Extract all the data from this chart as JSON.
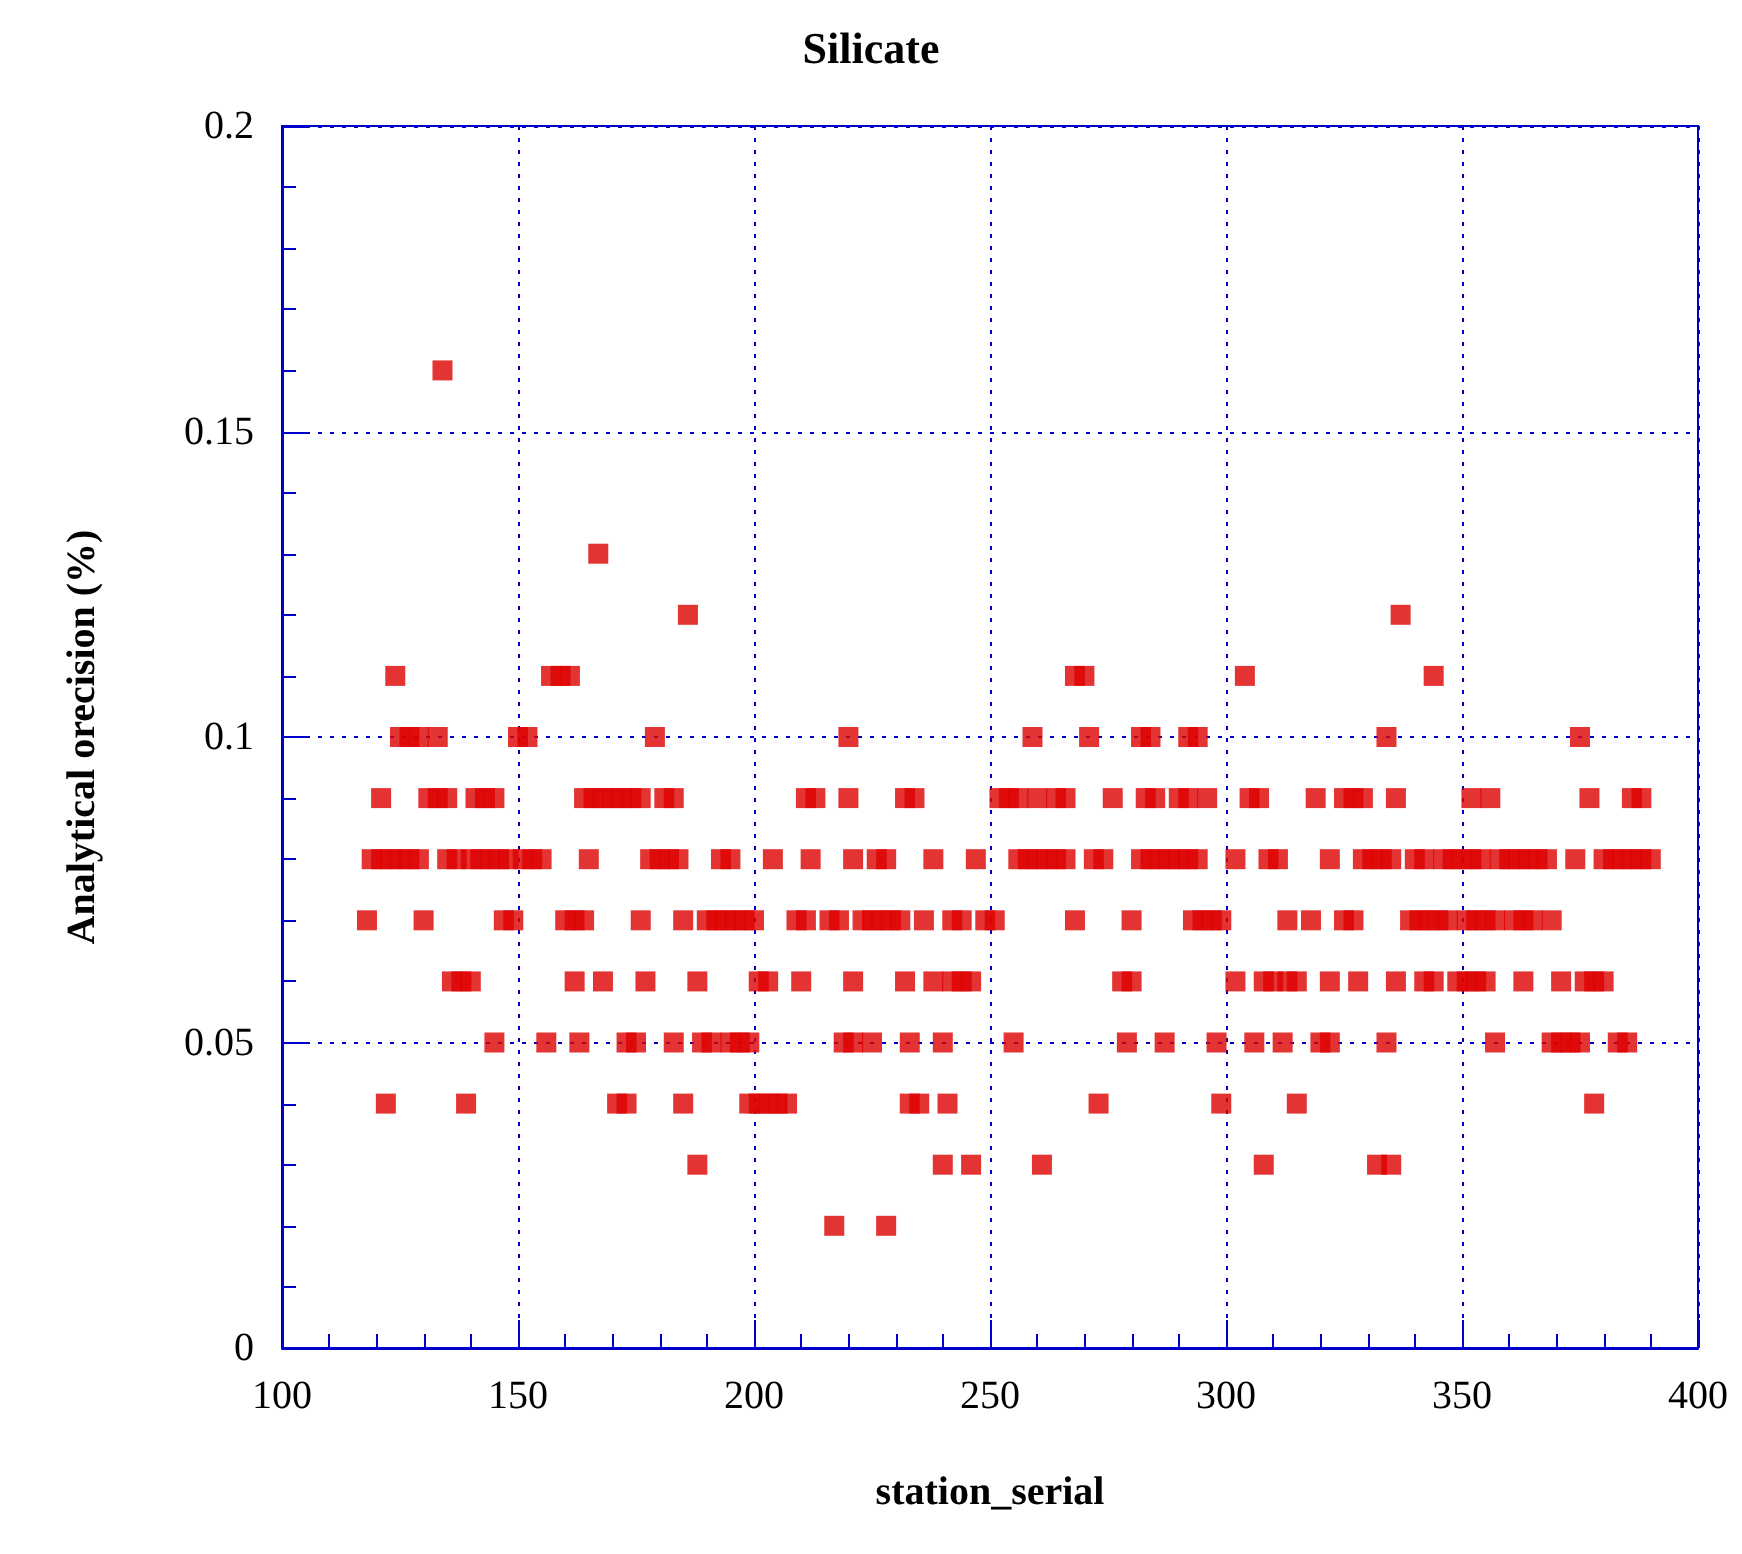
{
  "chart_data": {
    "type": "scatter",
    "title": "Silicate",
    "xlabel": "station_serial",
    "ylabel": "Analytical orecision (%)",
    "xlim": [
      100,
      400
    ],
    "xticks": [
      100,
      150,
      200,
      250,
      300,
      350,
      400
    ],
    "ylim": [
      0,
      0.2
    ],
    "yticks": [
      0,
      0.05,
      0.1,
      0.15,
      0.2
    ],
    "grid": true,
    "marker": "square",
    "series": [
      {
        "color": "#dd0000",
        "x": [
          134,
          167,
          186,
          337,
          124,
          157,
          159,
          161,
          268,
          270,
          304,
          344,
          125,
          127,
          129,
          133,
          150,
          152,
          179,
          220,
          259,
          271,
          282,
          284,
          292,
          294,
          334,
          375,
          121,
          131,
          133,
          135,
          141,
          143,
          145,
          164,
          166,
          168,
          170,
          172,
          174,
          176,
          181,
          183,
          211,
          213,
          220,
          232,
          234,
          252,
          254,
          256,
          260,
          264,
          266,
          276,
          283,
          285,
          290,
          292,
          296,
          305,
          307,
          319,
          325,
          327,
          329,
          336,
          352,
          356,
          377,
          386,
          388,
          119,
          121,
          123,
          125,
          127,
          129,
          135,
          137,
          140,
          142,
          144,
          146,
          148,
          151,
          153,
          155,
          165,
          178,
          180,
          182,
          184,
          193,
          195,
          204,
          212,
          221,
          226,
          228,
          238,
          247,
          256,
          258,
          260,
          262,
          264,
          266,
          272,
          274,
          282,
          284,
          286,
          288,
          290,
          292,
          294,
          302,
          309,
          311,
          322,
          329,
          331,
          333,
          335,
          340,
          342,
          346,
          348,
          350,
          352,
          354,
          358,
          360,
          362,
          364,
          366,
          368,
          374,
          380,
          382,
          384,
          386,
          388,
          390,
          118,
          130,
          147,
          149,
          160,
          162,
          164,
          176,
          185,
          190,
          192,
          194,
          196,
          198,
          200,
          209,
          211,
          216,
          218,
          223,
          225,
          227,
          229,
          231,
          236,
          242,
          244,
          249,
          251,
          268,
          280,
          293,
          295,
          297,
          299,
          313,
          318,
          325,
          327,
          339,
          341,
          343,
          345,
          347,
          351,
          353,
          355,
          357,
          361,
          363,
          365,
          369,
          136,
          138,
          140,
          162,
          168,
          177,
          188,
          201,
          203,
          210,
          221,
          232,
          238,
          242,
          244,
          246,
          278,
          280,
          302,
          308,
          310,
          313,
          315,
          322,
          328,
          336,
          342,
          344,
          349,
          351,
          353,
          355,
          363,
          371,
          376,
          378,
          380,
          145,
          156,
          163,
          173,
          175,
          183,
          189,
          191,
          195,
          197,
          199,
          219,
          221,
          225,
          233,
          240,
          255,
          279,
          287,
          298,
          306,
          312,
          320,
          322,
          334,
          357,
          369,
          371,
          373,
          375,
          383,
          385,
          122,
          139,
          171,
          173,
          185,
          199,
          201,
          203,
          205,
          207,
          233,
          235,
          241,
          273,
          299,
          315,
          378,
          188,
          240,
          246,
          261,
          308,
          332,
          335,
          217,
          228
        ],
        "values": [
          0.16,
          0.13,
          0.12,
          0.12,
          0.11,
          0.11,
          0.11,
          0.11,
          0.11,
          0.11,
          0.11,
          0.11,
          0.1,
          0.1,
          0.1,
          0.1,
          0.1,
          0.1,
          0.1,
          0.1,
          0.1,
          0.1,
          0.1,
          0.1,
          0.1,
          0.1,
          0.1,
          0.1,
          0.09,
          0.09,
          0.09,
          0.09,
          0.09,
          0.09,
          0.09,
          0.09,
          0.09,
          0.09,
          0.09,
          0.09,
          0.09,
          0.09,
          0.09,
          0.09,
          0.09,
          0.09,
          0.09,
          0.09,
          0.09,
          0.09,
          0.09,
          0.09,
          0.09,
          0.09,
          0.09,
          0.09,
          0.09,
          0.09,
          0.09,
          0.09,
          0.09,
          0.09,
          0.09,
          0.09,
          0.09,
          0.09,
          0.09,
          0.09,
          0.09,
          0.09,
          0.09,
          0.09,
          0.09,
          0.08,
          0.08,
          0.08,
          0.08,
          0.08,
          0.08,
          0.08,
          0.08,
          0.08,
          0.08,
          0.08,
          0.08,
          0.08,
          0.08,
          0.08,
          0.08,
          0.08,
          0.08,
          0.08,
          0.08,
          0.08,
          0.08,
          0.08,
          0.08,
          0.08,
          0.08,
          0.08,
          0.08,
          0.08,
          0.08,
          0.08,
          0.08,
          0.08,
          0.08,
          0.08,
          0.08,
          0.08,
          0.08,
          0.08,
          0.08,
          0.08,
          0.08,
          0.08,
          0.08,
          0.08,
          0.08,
          0.08,
          0.08,
          0.08,
          0.08,
          0.08,
          0.08,
          0.08,
          0.08,
          0.08,
          0.08,
          0.08,
          0.08,
          0.08,
          0.08,
          0.08,
          0.08,
          0.08,
          0.08,
          0.08,
          0.08,
          0.08,
          0.08,
          0.08,
          0.08,
          0.08,
          0.08,
          0.08,
          0.07,
          0.07,
          0.07,
          0.07,
          0.07,
          0.07,
          0.07,
          0.07,
          0.07,
          0.07,
          0.07,
          0.07,
          0.07,
          0.07,
          0.07,
          0.07,
          0.07,
          0.07,
          0.07,
          0.07,
          0.07,
          0.07,
          0.07,
          0.07,
          0.07,
          0.07,
          0.07,
          0.07,
          0.07,
          0.07,
          0.07,
          0.07,
          0.07,
          0.07,
          0.07,
          0.07,
          0.07,
          0.07,
          0.07,
          0.07,
          0.07,
          0.07,
          0.07,
          0.07,
          0.07,
          0.07,
          0.07,
          0.07,
          0.07,
          0.07,
          0.07,
          0.07,
          0.06,
          0.06,
          0.06,
          0.06,
          0.06,
          0.06,
          0.06,
          0.06,
          0.06,
          0.06,
          0.06,
          0.06,
          0.06,
          0.06,
          0.06,
          0.06,
          0.06,
          0.06,
          0.06,
          0.06,
          0.06,
          0.06,
          0.06,
          0.06,
          0.06,
          0.06,
          0.06,
          0.06,
          0.06,
          0.06,
          0.06,
          0.06,
          0.06,
          0.06,
          0.06,
          0.06,
          0.06,
          0.05,
          0.05,
          0.05,
          0.05,
          0.05,
          0.05,
          0.05,
          0.05,
          0.05,
          0.05,
          0.05,
          0.05,
          0.05,
          0.05,
          0.05,
          0.05,
          0.05,
          0.05,
          0.05,
          0.05,
          0.05,
          0.05,
          0.05,
          0.05,
          0.05,
          0.05,
          0.05,
          0.05,
          0.05,
          0.05,
          0.05,
          0.05,
          0.04,
          0.04,
          0.04,
          0.04,
          0.04,
          0.04,
          0.04,
          0.04,
          0.04,
          0.04,
          0.04,
          0.04,
          0.04,
          0.04,
          0.04,
          0.04,
          0.04,
          0.03,
          0.03,
          0.03,
          0.03,
          0.03,
          0.03,
          0.03,
          0.02,
          0.02
        ]
      }
    ]
  }
}
